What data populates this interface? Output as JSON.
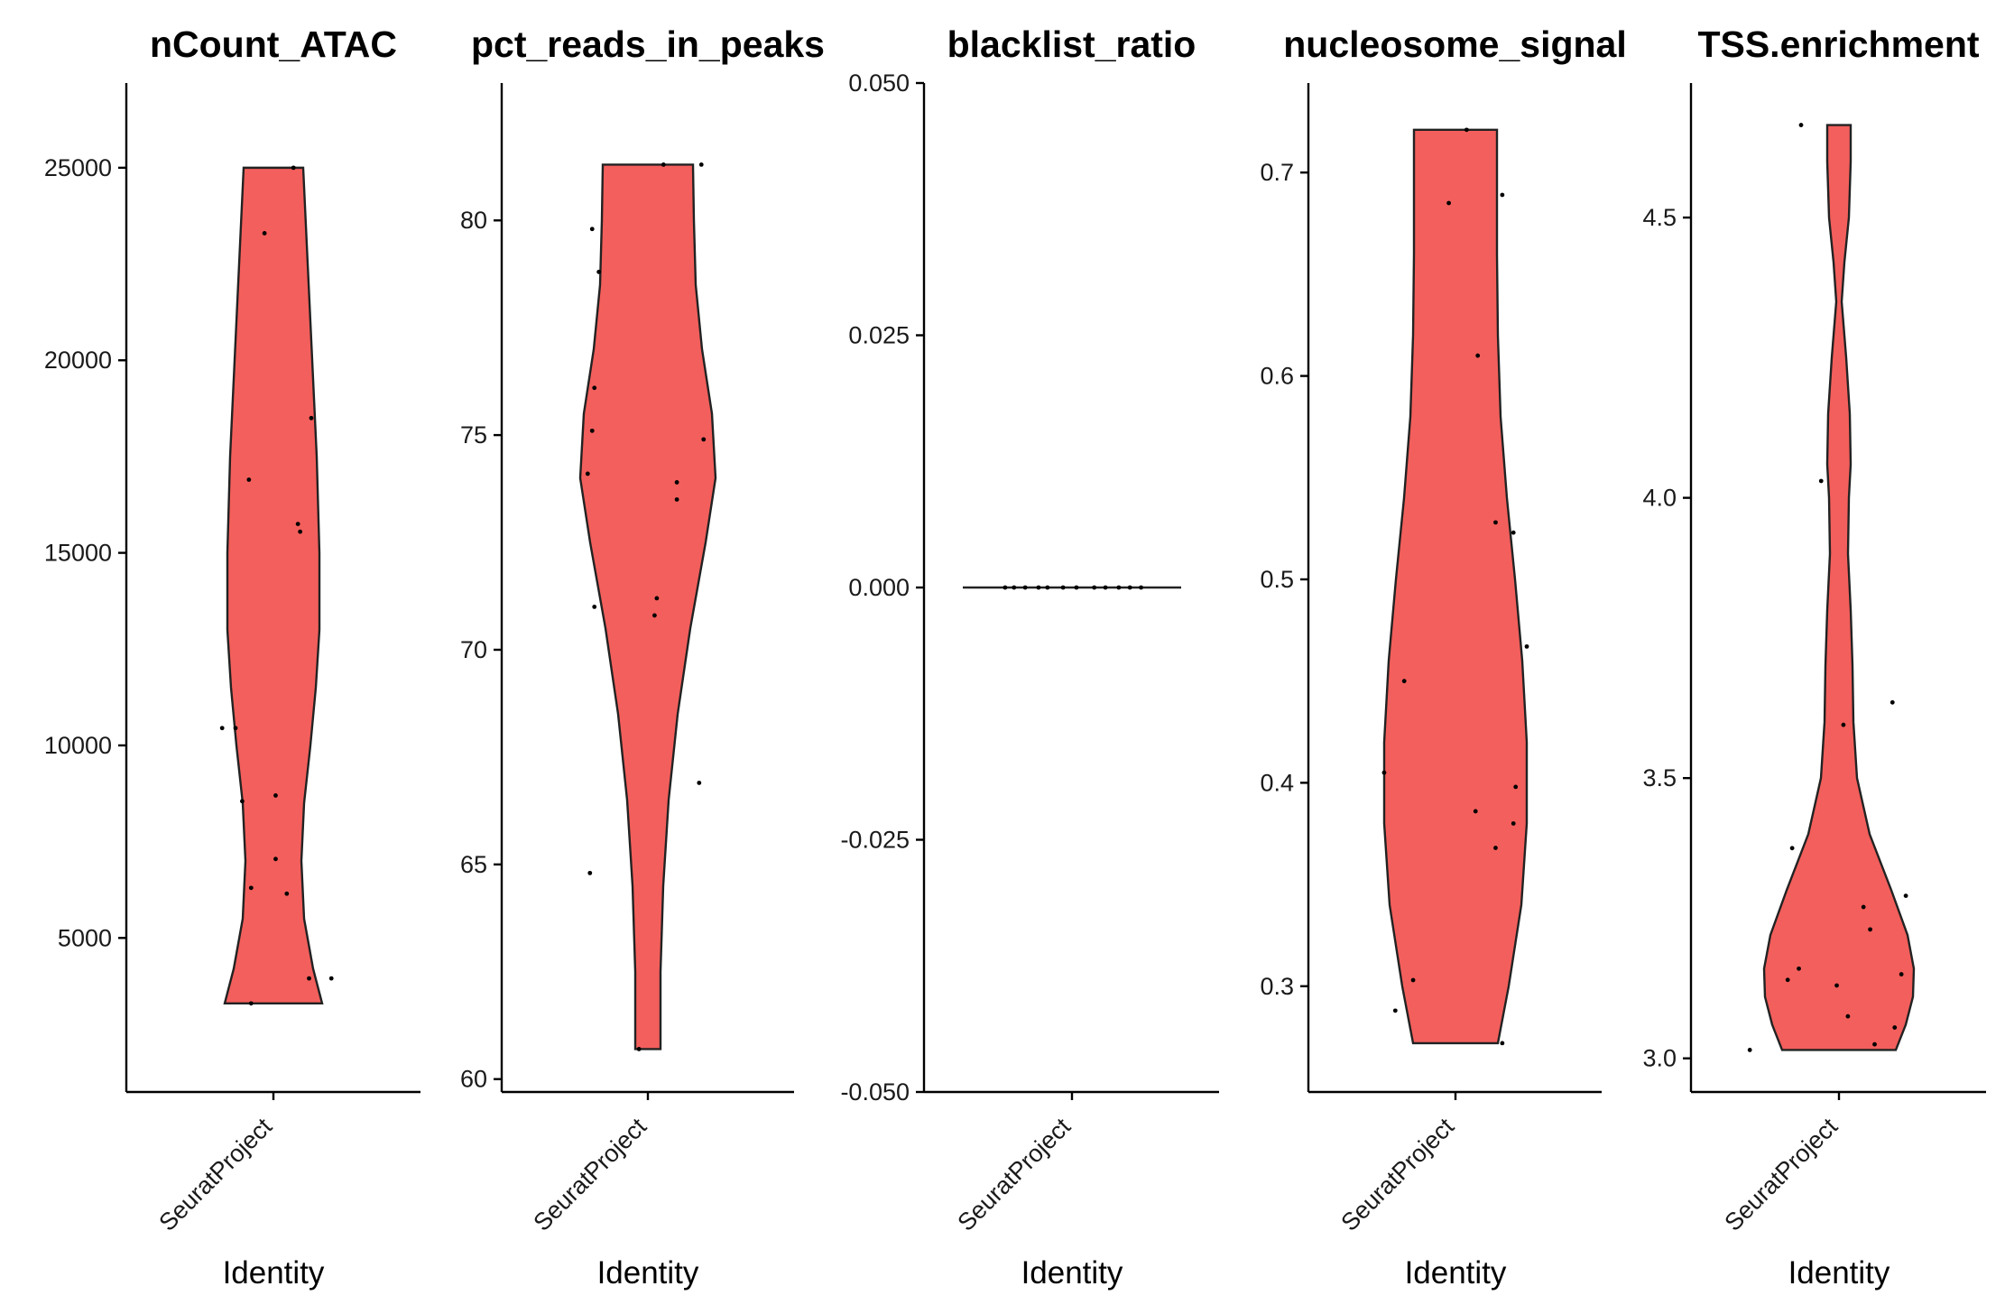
{
  "chart_data": {
    "type": "violin",
    "fill_color": "#F35F5C",
    "panels": [
      {
        "title": "nCount_ATAC",
        "xlabel": "Identity",
        "category": "SeuratProject",
        "ylim": [
          1000,
          27200
        ],
        "yticks": [
          5000,
          10000,
          15000,
          20000,
          25000
        ],
        "ytick_labels": [
          "5000",
          "10000",
          "15000",
          "20000",
          "25000"
        ],
        "data_range": [
          3300,
          25000
        ],
        "density": [
          [
            3300,
            54
          ],
          [
            4200,
            44
          ],
          [
            5500,
            34
          ],
          [
            7000,
            31
          ],
          [
            8500,
            34
          ],
          [
            10000,
            41
          ],
          [
            11500,
            47
          ],
          [
            13000,
            51
          ],
          [
            15000,
            51
          ],
          [
            17500,
            48
          ],
          [
            20000,
            43
          ],
          [
            22500,
            38
          ],
          [
            25000,
            33
          ]
        ],
        "points": [
          [
            -0.23,
            10450
          ],
          [
            -0.17,
            10450
          ],
          [
            -0.14,
            8550
          ],
          [
            -0.11,
            16900
          ],
          [
            -0.1,
            6300
          ],
          [
            -0.04,
            23300
          ],
          [
            0.01,
            8700
          ],
          [
            0.01,
            7050
          ],
          [
            0.06,
            6150
          ],
          [
            0.09,
            25000
          ],
          [
            0.11,
            15750
          ],
          [
            0.12,
            15550
          ],
          [
            0.16,
            3950
          ],
          [
            0.17,
            18500
          ],
          [
            0.26,
            3950
          ],
          [
            -0.1,
            3300
          ]
        ]
      },
      {
        "title": "pct_reads_in_peaks",
        "xlabel": "Identity",
        "category": "SeuratProject",
        "ylim": [
          59.7,
          83.2
        ],
        "yticks": [
          60,
          65,
          70,
          75,
          80
        ],
        "ytick_labels": [
          "60",
          "65",
          "70",
          "75",
          "80"
        ],
        "data_range": [
          60.7,
          81.3
        ],
        "density": [
          [
            60.7,
            14
          ],
          [
            62.5,
            14
          ],
          [
            64.5,
            17
          ],
          [
            66.5,
            23
          ],
          [
            68.5,
            33
          ],
          [
            70.5,
            47
          ],
          [
            72.5,
            64
          ],
          [
            74.0,
            75
          ],
          [
            75.5,
            71
          ],
          [
            77.0,
            60
          ],
          [
            78.5,
            53
          ],
          [
            80.0,
            51
          ],
          [
            81.3,
            50
          ]
        ],
        "points": [
          [
            -0.25,
            79.8
          ],
          [
            -0.22,
            78.8
          ],
          [
            -0.24,
            76.1
          ],
          [
            -0.25,
            75.1
          ],
          [
            -0.27,
            74.1
          ],
          [
            -0.24,
            71.0
          ],
          [
            -0.26,
            64.8
          ],
          [
            0.04,
            71.2
          ],
          [
            0.03,
            70.8
          ],
          [
            0.13,
            73.9
          ],
          [
            0.13,
            73.5
          ],
          [
            0.24,
            81.3
          ],
          [
            0.25,
            74.9
          ],
          [
            0.23,
            66.9
          ],
          [
            0.07,
            81.3
          ],
          [
            -0.04,
            60.7
          ]
        ]
      },
      {
        "title": "blacklist_ratio",
        "xlabel": "Identity",
        "category": "SeuratProject",
        "ylim": [
          -0.05,
          0.05
        ],
        "yticks": [
          -0.05,
          -0.025,
          0,
          0.025,
          0.05
        ],
        "ytick_labels": [
          "-0.050",
          "-0.025",
          "0.000",
          "0.025",
          "0.050"
        ],
        "data_range": [
          0,
          0
        ],
        "density": [],
        "points": [
          [
            -0.3,
            0
          ],
          [
            -0.26,
            0
          ],
          [
            -0.21,
            0
          ],
          [
            -0.15,
            0
          ],
          [
            -0.11,
            0
          ],
          [
            -0.04,
            0
          ],
          [
            0.02,
            0
          ],
          [
            0.1,
            0
          ],
          [
            0.15,
            0
          ],
          [
            0.21,
            0
          ],
          [
            0.26,
            0
          ],
          [
            0.31,
            0
          ]
        ]
      },
      {
        "title": "nucleosome_signal",
        "xlabel": "Identity",
        "category": "SeuratProject",
        "ylim": [
          0.248,
          0.744
        ],
        "yticks": [
          0.3,
          0.4,
          0.5,
          0.6,
          0.7
        ],
        "ytick_labels": [
          "0.3",
          "0.4",
          "0.5",
          "0.6",
          "0.7"
        ],
        "data_range": [
          0.272,
          0.721
        ],
        "density": [
          [
            0.272,
            47
          ],
          [
            0.3,
            59
          ],
          [
            0.34,
            73
          ],
          [
            0.38,
            79
          ],
          [
            0.42,
            79
          ],
          [
            0.46,
            74
          ],
          [
            0.5,
            66
          ],
          [
            0.54,
            57
          ],
          [
            0.58,
            50
          ],
          [
            0.62,
            47
          ],
          [
            0.66,
            46
          ],
          [
            0.7,
            46
          ],
          [
            0.721,
            46
          ]
        ],
        "points": [
          [
            -0.32,
            0.405
          ],
          [
            -0.27,
            0.288
          ],
          [
            -0.23,
            0.45
          ],
          [
            -0.19,
            0.303
          ],
          [
            -0.03,
            0.685
          ],
          [
            0.05,
            0.721
          ],
          [
            0.1,
            0.61
          ],
          [
            0.09,
            0.386
          ],
          [
            0.18,
            0.528
          ],
          [
            0.18,
            0.368
          ],
          [
            0.21,
            0.689
          ],
          [
            0.26,
            0.523
          ],
          [
            0.27,
            0.398
          ],
          [
            0.26,
            0.38
          ],
          [
            0.32,
            0.467
          ],
          [
            0.21,
            0.272
          ]
        ]
      },
      {
        "title": "TSS.enrichment",
        "xlabel": "Identity",
        "category": "SeuratProject",
        "ylim": [
          2.94,
          4.74
        ],
        "yticks": [
          3.0,
          3.5,
          4.0,
          4.5
        ],
        "ytick_labels": [
          "3.0",
          "3.5",
          "4.0",
          "4.5"
        ],
        "data_range": [
          3.015,
          4.665
        ],
        "density": [
          [
            3.015,
            63
          ],
          [
            3.06,
            74
          ],
          [
            3.11,
            82
          ],
          [
            3.16,
            83
          ],
          [
            3.22,
            76
          ],
          [
            3.3,
            58
          ],
          [
            3.4,
            34
          ],
          [
            3.5,
            20
          ],
          [
            3.6,
            16
          ],
          [
            3.7,
            15
          ],
          [
            3.8,
            13
          ],
          [
            3.9,
            10
          ],
          [
            4.0,
            11
          ],
          [
            4.06,
            13
          ],
          [
            4.15,
            12
          ],
          [
            4.25,
            8
          ],
          [
            4.35,
            3
          ],
          [
            4.42,
            6
          ],
          [
            4.5,
            11
          ],
          [
            4.6,
            13
          ],
          [
            4.665,
            13
          ]
        ],
        "points": [
          [
            -0.4,
            3.015
          ],
          [
            -0.23,
            3.14
          ],
          [
            -0.21,
            3.375
          ],
          [
            -0.18,
            3.16
          ],
          [
            -0.17,
            4.665
          ],
          [
            -0.08,
            4.03
          ],
          [
            -0.01,
            3.13
          ],
          [
            0.02,
            3.595
          ],
          [
            0.04,
            3.075
          ],
          [
            0.11,
            3.27
          ],
          [
            0.14,
            3.23
          ],
          [
            0.16,
            3.025
          ],
          [
            0.24,
            3.635
          ],
          [
            0.25,
            3.055
          ],
          [
            0.28,
            3.15
          ],
          [
            0.3,
            3.29
          ]
        ]
      }
    ]
  }
}
